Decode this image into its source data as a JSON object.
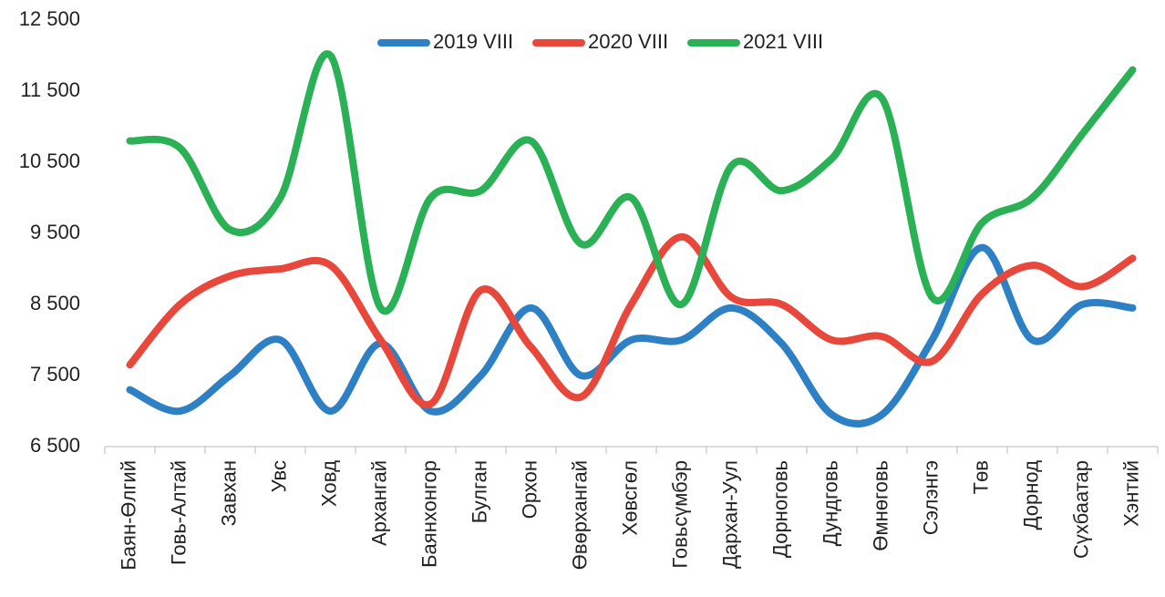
{
  "chart_data": {
    "type": "line",
    "categories": [
      "Баян-Өлгий",
      "Говь-Алтай",
      "Завхан",
      "Увс",
      "Ховд",
      "Архангай",
      "Баянхонгор",
      "Булган",
      "Орхон",
      "Өвөрхангай",
      "Хөвсгөл",
      "Говьсүмбэр",
      "Дархан-Уул",
      "Дорноговь",
      "Дундговь",
      "Өмнөговь",
      "Сэлэнгэ",
      "Төв",
      "Дорнод",
      "Сүхбаатар",
      "Хэнтий"
    ],
    "series": [
      {
        "name": "2019 VIII",
        "color": "#2e80c4",
        "values": [
          7300,
          7000,
          7500,
          8000,
          7000,
          7950,
          7000,
          7500,
          8450,
          7500,
          8000,
          8000,
          8450,
          7950,
          6950,
          6950,
          8000,
          9300,
          8000,
          8500,
          8450
        ]
      },
      {
        "name": "2020 VIII",
        "color": "#e8483c",
        "values": [
          7650,
          8500,
          8900,
          9000,
          9050,
          8000,
          7100,
          8700,
          7900,
          7200,
          8500,
          9450,
          8600,
          8500,
          8000,
          8050,
          7700,
          8650,
          9050,
          8750,
          9150
        ]
      },
      {
        "name": "2021 VIII",
        "color": "#2bb155",
        "values": [
          10800,
          10700,
          9550,
          10000,
          12000,
          8450,
          10000,
          10100,
          10800,
          9350,
          10000,
          8500,
          10450,
          10100,
          10550,
          11400,
          8600,
          9650,
          10000,
          10900,
          11800
        ]
      }
    ],
    "ylim": [
      6500,
      12500
    ],
    "yticks": [
      {
        "value": 6500,
        "label": "6 500"
      },
      {
        "value": 7500,
        "label": "7 500"
      },
      {
        "value": 8500,
        "label": "8 500"
      },
      {
        "value": 9500,
        "label": "9 500"
      },
      {
        "value": 10500,
        "label": "10 500"
      },
      {
        "value": 11500,
        "label": "11 500"
      },
      {
        "value": 12500,
        "label": "12 500"
      }
    ],
    "legend": "top"
  }
}
